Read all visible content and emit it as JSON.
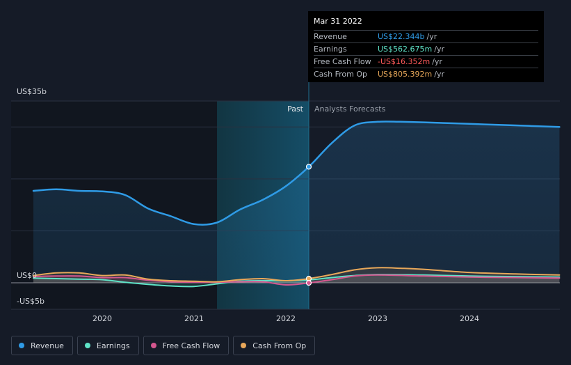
{
  "colors": {
    "revenue": "#2f9be6",
    "earnings": "#5fe3c7",
    "fcf": "#d4578f",
    "cfo": "#e8a85a",
    "negative": "#ff5a5a"
  },
  "tooltip": {
    "date": "Mar 31 2022",
    "rows": [
      {
        "label": "Revenue",
        "value": "US$22.344b",
        "unit": "/yr"
      },
      {
        "label": "Earnings",
        "value": "US$562.675m",
        "unit": "/yr"
      },
      {
        "label": "Free Cash Flow",
        "value": "-US$16.352m",
        "unit": "/yr"
      },
      {
        "label": "Cash From Op",
        "value": "US$805.392m",
        "unit": "/yr"
      }
    ]
  },
  "legend": [
    {
      "label": "Revenue",
      "icon": "revenue-dot-icon"
    },
    {
      "label": "Earnings",
      "icon": "earnings-dot-icon"
    },
    {
      "label": "Free Cash Flow",
      "icon": "fcf-dot-icon"
    },
    {
      "label": "Cash From Op",
      "icon": "cfo-dot-icon"
    }
  ],
  "chart_data": {
    "type": "line",
    "title": "",
    "xlabel": "",
    "ylabel": "",
    "ylim": [
      -5,
      35
    ],
    "xlim": [
      2019.25,
      2024.98
    ],
    "y_labels": [
      {
        "value": 35,
        "text": "US$35b"
      },
      {
        "value": 0,
        "text": "US$0"
      },
      {
        "value": -5,
        "text": "-US$5b"
      }
    ],
    "gridlines": [
      35,
      30,
      20,
      10,
      0
    ],
    "x_ticks": [
      {
        "value": 2020,
        "text": "2020"
      },
      {
        "value": 2021,
        "text": "2021"
      },
      {
        "value": 2022,
        "text": "2022"
      },
      {
        "value": 2023,
        "text": "2023"
      },
      {
        "value": 2024,
        "text": "2024"
      }
    ],
    "past_label": "Past",
    "forecast_label": "Analysts Forecasts",
    "highlight_start": 2021.25,
    "divider_x": 2022.25,
    "series": [
      {
        "name": "Revenue",
        "key": "revenue",
        "x": [
          2019.25,
          2019.5,
          2019.75,
          2020.0,
          2020.25,
          2020.5,
          2020.75,
          2021.0,
          2021.25,
          2021.5,
          2021.75,
          2022.0,
          2022.25,
          2022.5,
          2022.75,
          2023.0,
          2023.25,
          2023.5,
          2024.0,
          2024.5,
          2024.98
        ],
        "values": [
          17.7,
          18.0,
          17.7,
          17.6,
          16.9,
          14.3,
          12.8,
          11.3,
          11.6,
          14.1,
          16.0,
          18.6,
          22.344,
          26.9,
          30.3,
          31.0,
          31.0,
          30.9,
          30.6,
          30.3,
          30.0
        ]
      },
      {
        "name": "Earnings",
        "key": "earnings",
        "x": [
          2019.25,
          2019.5,
          2019.75,
          2020.0,
          2020.25,
          2020.5,
          2020.75,
          2021.0,
          2021.25,
          2021.5,
          2021.75,
          2022.0,
          2022.25,
          2022.5,
          2022.75,
          2023.0,
          2023.5,
          2024.0,
          2024.5,
          2024.98
        ],
        "values": [
          0.9,
          0.8,
          0.7,
          0.6,
          0.1,
          -0.3,
          -0.6,
          -0.7,
          -0.2,
          0.3,
          0.4,
          0.4,
          0.563,
          1.0,
          1.4,
          1.6,
          1.5,
          1.3,
          1.2,
          1.1
        ]
      },
      {
        "name": "Free Cash Flow",
        "key": "fcf",
        "x": [
          2019.25,
          2019.5,
          2019.75,
          2020.0,
          2020.25,
          2020.5,
          2020.75,
          2021.0,
          2021.25,
          2021.5,
          2021.75,
          2022.0,
          2022.25,
          2022.5,
          2022.75,
          2023.0,
          2023.5,
          2024.0,
          2024.5,
          2024.98
        ],
        "values": [
          1.2,
          1.3,
          1.3,
          1.0,
          1.0,
          0.5,
          0.2,
          0.1,
          0.1,
          0.2,
          0.2,
          -0.4,
          -0.016,
          0.6,
          1.3,
          1.5,
          1.3,
          1.1,
          1.0,
          0.9
        ]
      },
      {
        "name": "Cash From Op",
        "key": "cfo",
        "x": [
          2019.25,
          2019.5,
          2019.75,
          2020.0,
          2020.25,
          2020.5,
          2020.75,
          2021.0,
          2021.25,
          2021.5,
          2021.75,
          2022.0,
          2022.25,
          2022.5,
          2022.75,
          2023.0,
          2023.25,
          2023.5,
          2024.0,
          2024.5,
          2024.98
        ],
        "values": [
          1.4,
          1.9,
          1.9,
          1.4,
          1.5,
          0.7,
          0.4,
          0.3,
          0.2,
          0.6,
          0.8,
          0.4,
          0.805,
          1.6,
          2.5,
          2.9,
          2.8,
          2.6,
          2.0,
          1.7,
          1.5
        ]
      }
    ],
    "markers": [
      {
        "series": "revenue",
        "x": 2022.25,
        "y": 22.344
      },
      {
        "series": "cfo",
        "x": 2022.25,
        "y": 0.805
      },
      {
        "series": "fcf",
        "x": 2022.25,
        "y": -0.016
      }
    ]
  }
}
